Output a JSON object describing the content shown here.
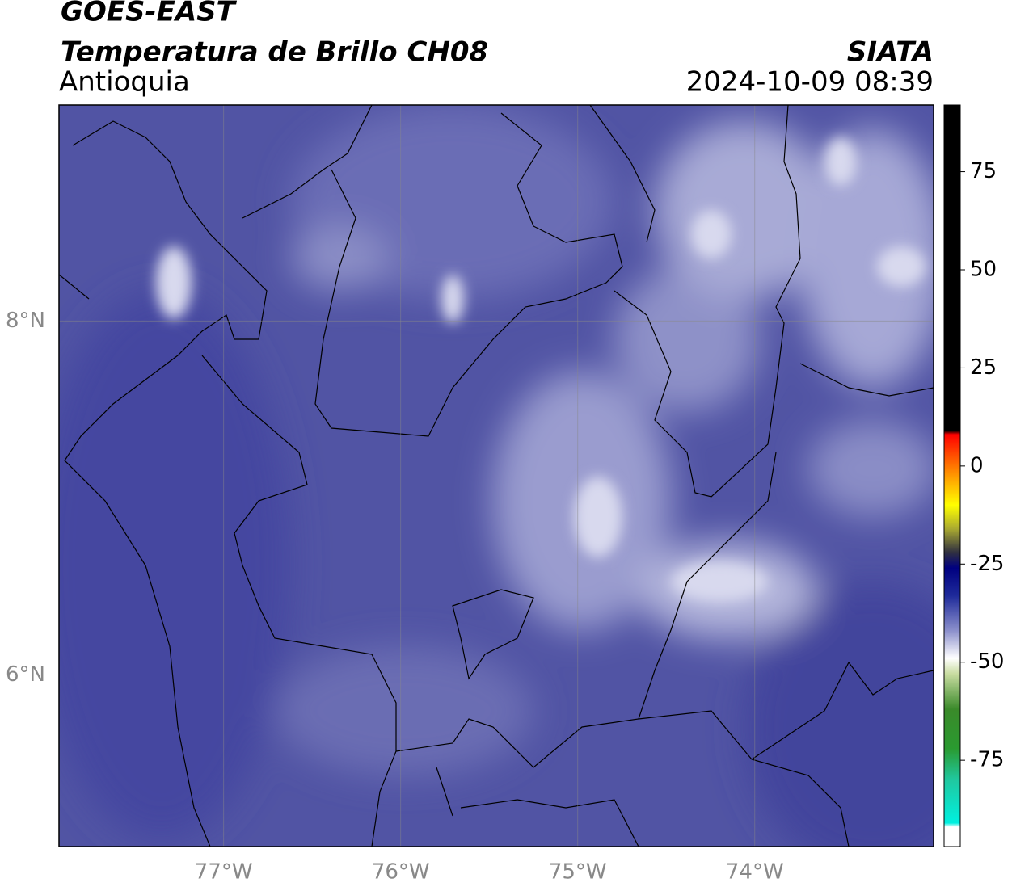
{
  "header": {
    "title": "GOES-EAST",
    "product": "Temperatura de Brillo CH08",
    "region": "Antioquia",
    "source": "SIATA",
    "datetime": "2024-10-09 08:39"
  },
  "map": {
    "xlim": [
      -77.93,
      -72.99
    ],
    "ylim": [
      5.03,
      9.22
    ],
    "xticks": [
      {
        "value": -77,
        "label": "77°W"
      },
      {
        "value": -76,
        "label": "76°W"
      },
      {
        "value": -75,
        "label": "75°W"
      },
      {
        "value": -74,
        "label": "74°W"
      }
    ],
    "yticks": [
      {
        "value": 8,
        "label": "8°N"
      },
      {
        "value": 6,
        "label": "6°N"
      }
    ],
    "grid": true
  },
  "colorbar": {
    "lim": [
      -97,
      92
    ],
    "ticks": [
      75,
      50,
      25,
      0,
      -25,
      -50,
      -75
    ],
    "stops": [
      {
        "value": 92,
        "color": "#000000"
      },
      {
        "value": 9,
        "color": "#000000"
      },
      {
        "value": 8,
        "color": "#ff0000"
      },
      {
        "value": 3,
        "color": "#ff4a00"
      },
      {
        "value": -3,
        "color": "#ffa000"
      },
      {
        "value": -10,
        "color": "#ffff00"
      },
      {
        "value": -16,
        "color": "#aaaa30"
      },
      {
        "value": -22,
        "color": "#303040"
      },
      {
        "value": -26,
        "color": "#000080"
      },
      {
        "value": -33,
        "color": "#1e2a9a"
      },
      {
        "value": -42,
        "color": "#8c90cc"
      },
      {
        "value": -49,
        "color": "#ffffff"
      },
      {
        "value": -53,
        "color": "#c8dca0"
      },
      {
        "value": -62,
        "color": "#3a8a2a"
      },
      {
        "value": -72,
        "color": "#2a9a30"
      },
      {
        "value": -80,
        "color": "#20c8a0"
      },
      {
        "value": -91,
        "color": "#00f0e0"
      },
      {
        "value": -92,
        "color": "#ffffff"
      },
      {
        "value": -97,
        "color": "#ffffff"
      }
    ]
  }
}
